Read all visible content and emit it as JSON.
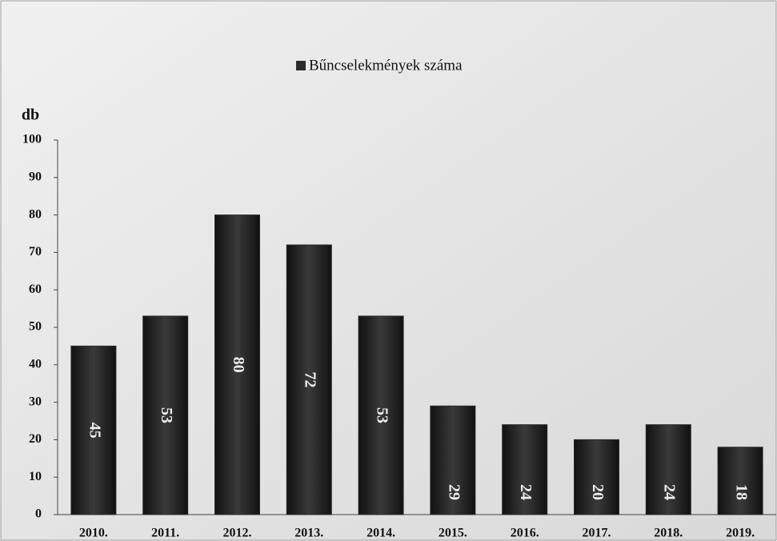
{
  "chart_data": {
    "type": "bar",
    "y_label": "db",
    "categories": [
      "2010.",
      "2011.",
      "2012.",
      "2013.",
      "2014.",
      "2015.",
      "2016.",
      "2017.",
      "2018.",
      "2019."
    ],
    "series": [
      {
        "name": "Bűncselekmények száma",
        "color": "#2b2b2b",
        "values": [
          45,
          53,
          80,
          72,
          53,
          29,
          24,
          20,
          24,
          18
        ]
      }
    ],
    "ylim": [
      0,
      100
    ],
    "yticks": [
      0,
      10,
      20,
      30,
      40,
      50,
      60,
      70,
      80,
      90,
      100
    ],
    "legend": "top",
    "data_labels": true
  }
}
